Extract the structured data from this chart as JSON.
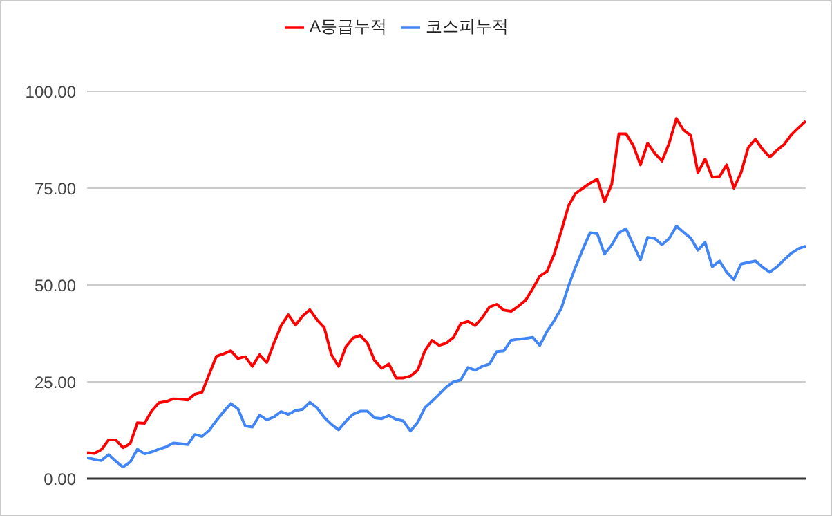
{
  "chart_data": {
    "type": "line",
    "categories": [
      null,
      null,
      null,
      null,
      null,
      null,
      null,
      null,
      null,
      null,
      null,
      null,
      null,
      null,
      null,
      null,
      null,
      null,
      null,
      null,
      null,
      null,
      null,
      null,
      null,
      null,
      null,
      null,
      null,
      null,
      null,
      null,
      null,
      null,
      null,
      null,
      null,
      null,
      null,
      null,
      null,
      null,
      null,
      null,
      null,
      null,
      null,
      null,
      null,
      null,
      null,
      null,
      null,
      null,
      null,
      null,
      null,
      null,
      null,
      null,
      null,
      null,
      null,
      null,
      null,
      null,
      null,
      null,
      null,
      null,
      null,
      null,
      null,
      null,
      null,
      null,
      null,
      null,
      null,
      null,
      null,
      null,
      null,
      null,
      null,
      null,
      null,
      null,
      null,
      null,
      null,
      null,
      null,
      null,
      null,
      null,
      null,
      null,
      null,
      null,
      null
    ],
    "ylim": [
      0,
      100
    ],
    "yticks": [
      {
        "value": 0,
        "label": "0.00"
      },
      {
        "value": 25,
        "label": "25.00"
      },
      {
        "value": 50,
        "label": "50.00"
      },
      {
        "value": 75,
        "label": "75.00"
      },
      {
        "value": 100,
        "label": "100.00"
      }
    ],
    "tick_labels": "y",
    "grid": "y",
    "legend": "top",
    "marker": "none",
    "line_style": "solid",
    "series": [
      {
        "name": "A등급누적",
        "color": "#ff0000",
        "values": [
          6.7,
          6.5,
          7.5,
          10,
          10,
          8,
          9,
          14.4,
          14.3,
          17.5,
          19.6,
          19.9,
          20.6,
          20.5,
          20.3,
          21.8,
          22.3,
          27,
          31.6,
          32.2,
          33,
          31,
          31.5,
          29,
          32,
          30,
          35,
          39.5,
          42.3,
          39.6,
          42,
          43.6,
          41,
          39,
          32,
          29,
          34,
          36.3,
          37,
          35,
          30.5,
          28.5,
          29.6,
          26,
          26,
          26.5,
          28,
          33,
          35.7,
          34.4,
          35,
          36.5,
          40,
          40.6,
          39.5,
          41.6,
          44.3,
          45,
          43.5,
          43.2,
          44.5,
          46,
          49,
          52.3,
          53.5,
          58,
          64,
          70.5,
          73.7,
          75,
          76.3,
          77.3,
          71.5,
          76,
          89,
          89,
          86,
          81,
          86.6,
          84,
          82,
          86.6,
          93,
          90,
          88.6,
          79,
          82.5,
          77.8,
          78,
          81,
          75,
          79,
          85.5,
          87.6,
          85,
          83,
          84.8,
          86.3,
          88.8,
          90.6,
          92.3
        ]
      },
      {
        "name": "코스피누적",
        "color": "#4285f4",
        "values": [
          5.4,
          5,
          4.7,
          6.2,
          4.5,
          3,
          4.3,
          7.6,
          6.4,
          6.9,
          7.6,
          8.2,
          9.2,
          9,
          8.8,
          11.4,
          10.9,
          12.5,
          15,
          17.3,
          19.4,
          18,
          13.6,
          13.3,
          16.4,
          15.2,
          15.9,
          17.3,
          16.6,
          17.6,
          17.9,
          19.7,
          18.3,
          15.8,
          14,
          12.6,
          14.8,
          16.6,
          17.4,
          17.4,
          15.7,
          15.5,
          16.3,
          15.3,
          14.9,
          12.3,
          14.5,
          18.3,
          20,
          21.8,
          23.7,
          25,
          25.5,
          28.7,
          28,
          29,
          29.6,
          32.8,
          33,
          35.7,
          36,
          36.2,
          36.5,
          34.4,
          38,
          40.8,
          44,
          49.8,
          54.8,
          59.3,
          63.5,
          63.2,
          58,
          60.3,
          63.5,
          64.5,
          60.4,
          56.5,
          62.3,
          62,
          60.4,
          62,
          65.2,
          63.6,
          62.1,
          59,
          61,
          54.7,
          56.2,
          53.3,
          51.4,
          55.4,
          55.8,
          56.2,
          54.6,
          53.3,
          54.7,
          56.5,
          58.2,
          59.4,
          60
        ]
      }
    ]
  }
}
